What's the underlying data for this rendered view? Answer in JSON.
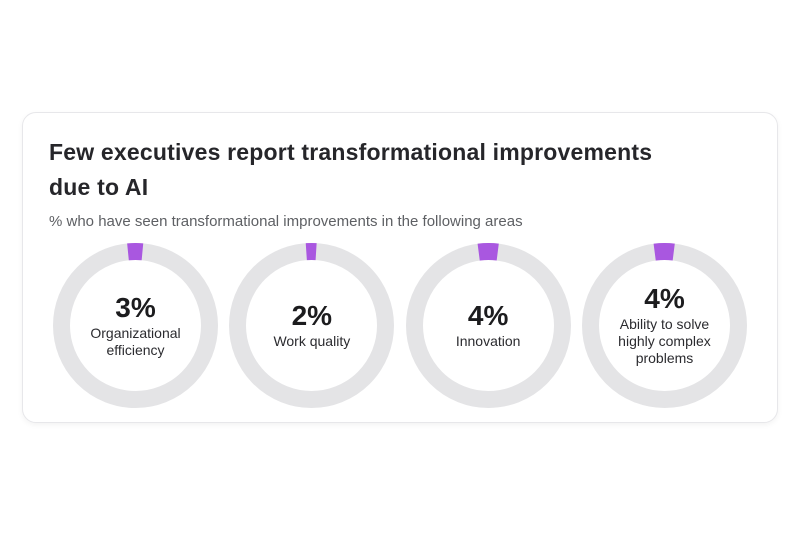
{
  "card": {
    "title_line1": "Few executives report transformational improvements",
    "title_line2": "due to AI",
    "subtitle": "% who have seen transformational improvements in the following areas"
  },
  "chart_data": {
    "type": "pie",
    "variant": "donut-set",
    "title": "Few executives report transformational improvements due to AI",
    "subtitle": "% who have seen transformational improvements in the following areas",
    "unit": "%",
    "max": 100,
    "segment_anchor": "top-centered",
    "items": [
      {
        "label": "Organizational efficiency",
        "value": 3,
        "display": "3%"
      },
      {
        "label": "Work quality",
        "value": 2,
        "display": "2%"
      },
      {
        "label": "Innovation",
        "value": 4,
        "display": "4%"
      },
      {
        "label": "Ability to solve highly complex problems",
        "value": 4,
        "display": "4%"
      }
    ],
    "colors": {
      "segment": "#a957e0",
      "track": "#e4e4e6",
      "title_text": "#26262a",
      "subtitle_text": "#5e6064",
      "value_text": "#1c1c1e",
      "label_text": "#2b2b2f"
    }
  }
}
